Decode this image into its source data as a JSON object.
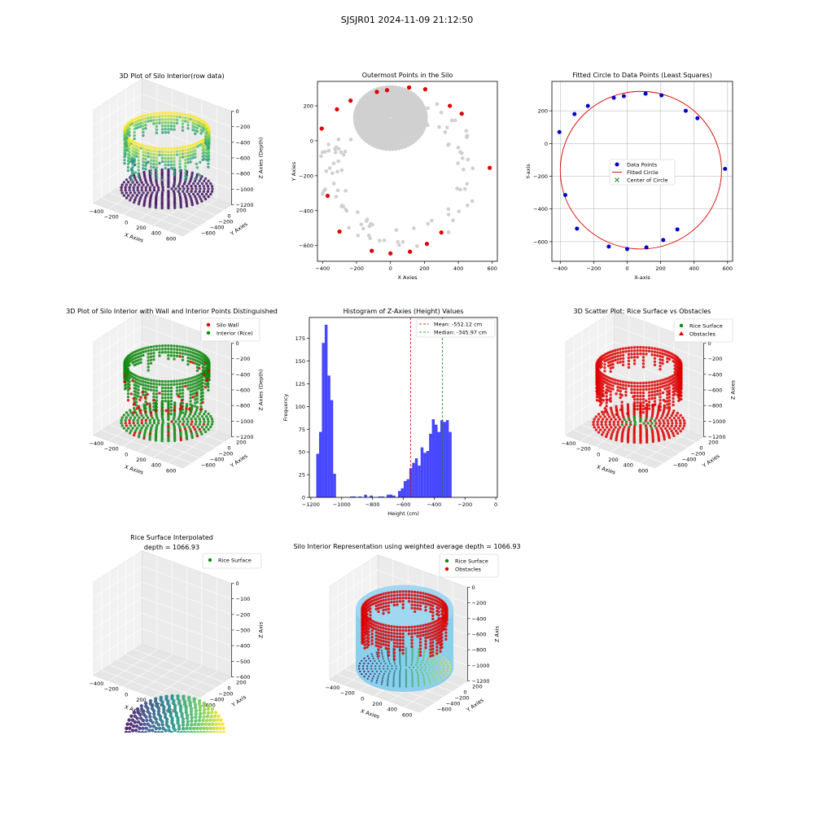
{
  "suptitle": "SJSJR01 2024-11-09 21:12:50",
  "colors": {
    "red": "#dd0000",
    "green": "#118811",
    "blue": "#0000cc",
    "grey": "#d0d0d0",
    "histogram": "#3333ff",
    "surface": "#87ceeb"
  },
  "chart_data": [
    {
      "id": "p1",
      "type": "scatter",
      "title": "3D Plot of Silo Interior(row data)",
      "xlabel": "X Axies",
      "ylabel": "Y Axies",
      "zlabel": "Z Axies (Depth)",
      "xticks": [
        "−400",
        "−200",
        "0",
        "200",
        "400",
        "600"
      ],
      "yticks": [
        "200",
        "0",
        "−200",
        "−400",
        "−600"
      ],
      "zticks": [
        "0",
        "−200",
        "−400",
        "−600",
        "−800",
        "−1000",
        "−1200"
      ]
    },
    {
      "id": "p2",
      "type": "scatter",
      "title": "Outermost Points in the Silo",
      "xlabel": "X Axies",
      "ylabel": "Y Axies",
      "xlim": [
        -430,
        630
      ],
      "ylim": [
        -690,
        340
      ],
      "xticks": [
        {
          "v": -400,
          "t": "−400"
        },
        {
          "v": -200,
          "t": "−200"
        },
        {
          "v": 0,
          "t": "0"
        },
        {
          "v": 200,
          "t": "200"
        },
        {
          "v": 400,
          "t": "400"
        },
        {
          "v": 600,
          "t": "600"
        }
      ],
      "yticks": [
        {
          "v": 200,
          "t": "200"
        },
        {
          "v": 0,
          "t": "0"
        },
        {
          "v": -200,
          "t": "−200"
        },
        {
          "v": -400,
          "t": "−400"
        },
        {
          "v": -600,
          "t": "−600"
        }
      ],
      "outer_points": [
        [
          -405,
          70
        ],
        [
          -315,
          180
        ],
        [
          -235,
          230
        ],
        [
          -80,
          280
        ],
        [
          -20,
          290
        ],
        [
          110,
          305
        ],
        [
          205,
          295
        ],
        [
          350,
          200
        ],
        [
          420,
          155
        ],
        [
          585,
          -155
        ],
        [
          -370,
          -315
        ],
        [
          -300,
          -520
        ],
        [
          -110,
          -630
        ],
        [
          0,
          -645
        ],
        [
          115,
          -635
        ],
        [
          215,
          -590
        ],
        [
          300,
          -525
        ]
      ]
    },
    {
      "id": "p3",
      "type": "scatter",
      "title": "Fitted Circle to Data Points (Least Squares)",
      "xlabel": "X-axis",
      "ylabel": "Y-axis",
      "xlim": [
        -450,
        630
      ],
      "ylim": [
        -720,
        380
      ],
      "xticks": [
        {
          "v": -400,
          "t": "−400"
        },
        {
          "v": -200,
          "t": "−200"
        },
        {
          "v": 0,
          "t": "0"
        },
        {
          "v": 200,
          "t": "200"
        },
        {
          "v": 400,
          "t": "400"
        },
        {
          "v": 600,
          "t": "600"
        }
      ],
      "yticks": [
        {
          "v": 200,
          "t": "200"
        },
        {
          "v": 0,
          "t": "0"
        },
        {
          "v": -200,
          "t": "−200"
        },
        {
          "v": -400,
          "t": "−400"
        },
        {
          "v": -600,
          "t": "−600"
        }
      ],
      "data_points": [
        [
          -405,
          70
        ],
        [
          -315,
          180
        ],
        [
          -235,
          230
        ],
        [
          -80,
          280
        ],
        [
          -20,
          290
        ],
        [
          110,
          305
        ],
        [
          205,
          295
        ],
        [
          350,
          200
        ],
        [
          420,
          155
        ],
        [
          585,
          -155
        ],
        [
          -370,
          -315
        ],
        [
          -300,
          -520
        ],
        [
          -110,
          -630
        ],
        [
          0,
          -645
        ],
        [
          115,
          -635
        ],
        [
          215,
          -590
        ],
        [
          300,
          -525
        ]
      ],
      "circle": {
        "cx": 82,
        "cy": -163,
        "r": 482
      },
      "legend": [
        "Data Points",
        "Fitted Circle",
        "Center of Circle"
      ]
    },
    {
      "id": "p4",
      "type": "scatter",
      "title": "3D Plot of Silo Interior with Wall and Interior Points Distinguished",
      "xlabel": "X Axies",
      "ylabel": "Y Axies",
      "zlabel": "Z Axies (Depth)",
      "xticks": [
        "−400",
        "−200",
        "0",
        "200",
        "400",
        "600"
      ],
      "yticks": [
        "200",
        "0",
        "−200",
        "−400",
        "−600"
      ],
      "zticks": [
        "0",
        "−200",
        "−400",
        "−600",
        "−800",
        "−1000",
        "−1200"
      ],
      "legend": [
        "Silo Wall",
        "Interior (Rice)"
      ]
    },
    {
      "id": "p5",
      "type": "bar",
      "title": "Histogram of Z-Axies (Height) Values",
      "xlabel": "Height (cm)",
      "ylabel": "Frequency",
      "xlim": [
        -1210,
        10
      ],
      "ylim": [
        0,
        198
      ],
      "xticks": [
        {
          "v": -1200,
          "t": "−1200"
        },
        {
          "v": -1000,
          "t": "−1000"
        },
        {
          "v": -800,
          "t": "−800"
        },
        {
          "v": -600,
          "t": "−600"
        },
        {
          "v": -400,
          "t": "−400"
        },
        {
          "v": -200,
          "t": "−200"
        },
        {
          "v": 0,
          "t": "0"
        }
      ],
      "yticks": [
        {
          "v": 0,
          "t": "0"
        },
        {
          "v": 25,
          "t": "25"
        },
        {
          "v": 50,
          "t": "50"
        },
        {
          "v": 75,
          "t": "75"
        },
        {
          "v": 100,
          "t": "100"
        },
        {
          "v": 125,
          "t": "125"
        },
        {
          "v": 150,
          "t": "150"
        },
        {
          "v": 175,
          "t": "175"
        }
      ],
      "bin_start": -1165,
      "bin_width": 18.3,
      "counts": [
        48,
        72,
        170,
        190,
        134,
        107,
        26,
        0,
        0,
        0,
        0,
        0,
        1,
        1,
        0,
        1,
        0,
        3,
        0,
        2,
        0,
        0,
        1,
        1,
        0,
        3,
        3,
        2,
        0,
        7,
        10,
        18,
        20,
        32,
        38,
        43,
        35,
        55,
        49,
        51,
        70,
        86,
        80,
        72,
        85,
        83,
        85,
        72
      ],
      "mean": {
        "value": -552.12,
        "label": "Mean: -552.12 cm"
      },
      "median": {
        "value": -345.97,
        "label": "Median: -345.97 cm"
      }
    },
    {
      "id": "p6",
      "type": "scatter",
      "title": "3D Scatter Plot: Rice Surface vs Obstacles",
      "xlabel": "X Axies",
      "ylabel": "Y Axies",
      "zlabel": "Z Axies",
      "xticks": [
        "−400",
        "−200",
        "0",
        "200",
        "400",
        "600"
      ],
      "yticks": [
        "200",
        "0",
        "−200",
        "−400",
        "−600"
      ],
      "zticks": [
        "0",
        "−200",
        "−400",
        "−600",
        "−800",
        "−1000",
        "−1200"
      ],
      "legend": [
        "Rice Surface",
        "Obstacles"
      ]
    },
    {
      "id": "p7",
      "type": "scatter",
      "title": "Rice Surface Interpolated",
      "subtitle": "depth = 1066.93",
      "xlabel": "X Axies",
      "ylabel": "Y Axis",
      "zlabel": "Z Axis",
      "xticks": [
        "−400",
        "−200",
        "0",
        "200",
        "400",
        "600"
      ],
      "yticks": [
        "200",
        "0",
        "−200",
        "−400",
        "−600"
      ],
      "zticks": [
        "0",
        "−100",
        "−200",
        "−300",
        "−400",
        "−500",
        "−600"
      ],
      "legend": [
        "Rice Surface"
      ]
    },
    {
      "id": "p8",
      "type": "scatter",
      "title": "Silo Interior Representation using weighted average depth = 1066.93",
      "xlabel": "X Axies",
      "ylabel": "Y Axies",
      "zlabel": "Z Axis",
      "xticks": [
        "−400",
        "−200",
        "0",
        "200",
        "400",
        "600"
      ],
      "yticks": [
        "200",
        "0",
        "−200",
        "−400",
        "−600"
      ],
      "zticks": [
        "0",
        "−200",
        "−400",
        "−600",
        "−800",
        "−1000",
        "−1200"
      ],
      "legend": [
        "Rice Surface",
        "Obstacles"
      ]
    }
  ]
}
